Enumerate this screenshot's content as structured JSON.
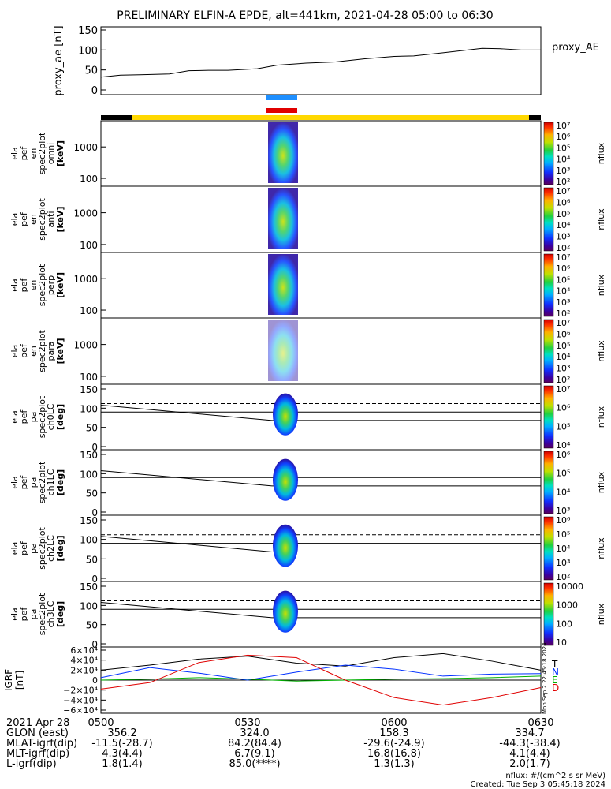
{
  "title": "PRELIMINARY ELFIN-A EPDE, alt=441km, 2021-04-28 05:00 to 06:30",
  "colors": {
    "axis": "#000000",
    "bar_black": "#000000",
    "bar_yellow": "#ffd800",
    "marker_blue": "#1e8fff",
    "marker_red": "#e00000",
    "T": "#000000",
    "N": "#0030ff",
    "E": "#00b000",
    "D": "#e00000"
  },
  "chart_data": [
    {
      "id": "proxy_ae",
      "type": "line",
      "ylabel": "proxy_ae [nT]",
      "legend": "proxy_AE",
      "ylim": [
        0,
        150
      ],
      "yticks": [
        "0",
        "50",
        "100",
        "150"
      ],
      "x_minutes": [
        0,
        4,
        8,
        14,
        18,
        22,
        26,
        32,
        36,
        42,
        48,
        54,
        60,
        64,
        70,
        78,
        82,
        86,
        90
      ],
      "values": [
        32,
        37,
        38,
        40,
        48,
        49,
        49,
        53,
        62,
        67,
        70,
        78,
        84,
        85,
        93,
        104,
        103,
        100,
        100
      ]
    },
    {
      "id": "en_spec_omni",
      "type": "heatmap",
      "ylabel": [
        "ela",
        "pef",
        "en",
        "spec2plot",
        "omni",
        "[keV]"
      ],
      "yscale": "log",
      "yticks": [
        "100",
        "1000"
      ],
      "colorbar": {
        "label": "nflux",
        "ticks": [
          "10²",
          "10³",
          "10⁴",
          "10⁵",
          "10⁶",
          "10⁷"
        ]
      }
    },
    {
      "id": "en_spec_anti",
      "type": "heatmap",
      "ylabel": [
        "ela",
        "pef",
        "en",
        "spec2plot",
        "anti",
        "[keV]"
      ],
      "yscale": "log",
      "yticks": [
        "100",
        "1000"
      ],
      "colorbar": {
        "label": "nflux",
        "ticks": [
          "10²",
          "10³",
          "10⁴",
          "10⁵",
          "10⁶",
          "10⁷"
        ]
      }
    },
    {
      "id": "en_spec_perp",
      "type": "heatmap",
      "ylabel": [
        "ela",
        "pef",
        "en",
        "spec2plot",
        "perp",
        "[keV]"
      ],
      "yscale": "log",
      "yticks": [
        "100",
        "1000"
      ],
      "colorbar": {
        "label": "nflux",
        "ticks": [
          "10²",
          "10³",
          "10⁴",
          "10⁵",
          "10⁶",
          "10⁷"
        ]
      }
    },
    {
      "id": "en_spec_para",
      "type": "heatmap",
      "ylabel": [
        "ela",
        "pef",
        "en",
        "spec2plot",
        "para",
        "[keV]"
      ],
      "yscale": "log",
      "yticks": [
        "100",
        "1000"
      ],
      "colorbar": {
        "label": "nflux",
        "ticks": [
          "10²",
          "10³",
          "10⁴",
          "10⁵",
          "10⁶",
          "10⁷"
        ]
      }
    },
    {
      "id": "pa_ch0",
      "type": "heatmap",
      "ylabel": [
        "ela",
        "pef",
        "pa",
        "spec2plot",
        "ch0LC",
        "[deg]"
      ],
      "ylim": [
        0,
        150
      ],
      "yticks": [
        "0",
        "50",
        "100",
        "150"
      ],
      "colorbar": {
        "label": "nflux",
        "ticks": [
          "10⁴",
          "10⁵",
          "10⁶",
          "10⁷"
        ]
      }
    },
    {
      "id": "pa_ch1",
      "type": "heatmap",
      "ylabel": [
        "ela",
        "pef",
        "pa",
        "spec2plot",
        "ch1LC",
        "[deg]"
      ],
      "ylim": [
        0,
        150
      ],
      "yticks": [
        "0",
        "50",
        "100",
        "150"
      ],
      "colorbar": {
        "label": "nflux",
        "ticks": [
          "10³",
          "10⁴",
          "10⁵",
          "10⁶"
        ]
      }
    },
    {
      "id": "pa_ch2",
      "type": "heatmap",
      "ylabel": [
        "ela",
        "pef",
        "pa",
        "spec2plot",
        "ch2LC",
        "[deg]"
      ],
      "ylim": [
        0,
        150
      ],
      "yticks": [
        "0",
        "50",
        "100",
        "150"
      ],
      "colorbar": {
        "label": "nflux",
        "ticks": [
          "10²",
          "10³",
          "10⁴",
          "10⁵",
          "10⁶"
        ]
      }
    },
    {
      "id": "pa_ch3",
      "type": "heatmap",
      "ylabel": [
        "ela",
        "pef",
        "pa",
        "spec2plot",
        "ch3LC",
        "[deg]"
      ],
      "ylim": [
        0,
        150
      ],
      "yticks": [
        "0",
        "50",
        "100",
        "150"
      ],
      "colorbar": {
        "label": "nflux",
        "ticks": [
          "10",
          "100",
          "1000",
          "10000"
        ]
      }
    },
    {
      "id": "igrf",
      "type": "line",
      "ylabel": [
        "IGRF",
        "[nT]"
      ],
      "ylim": [
        -60000,
        60000
      ],
      "yticks": [
        "−6×10⁴",
        "−4×10⁴",
        "−2×10⁴",
        "0",
        "2×10⁴",
        "4×10⁴",
        "6×10⁴"
      ],
      "legend": [
        "T",
        "N",
        "E",
        "D"
      ],
      "x_minutes": [
        0,
        10,
        20,
        30,
        40,
        50,
        60,
        70,
        80,
        90
      ],
      "series": [
        {
          "name": "T",
          "values": [
            20000,
            30000,
            42000,
            48000,
            34000,
            28000,
            45000,
            53000,
            38000,
            20000
          ]
        },
        {
          "name": "N",
          "values": [
            5000,
            25000,
            14000,
            0,
            16000,
            30000,
            22000,
            8000,
            12000,
            13000
          ]
        },
        {
          "name": "E",
          "values": [
            0,
            2000,
            5000,
            2000,
            -2000,
            0,
            2000,
            3000,
            5000,
            8000
          ]
        },
        {
          "name": "D",
          "values": [
            -18000,
            -5000,
            35000,
            50000,
            45000,
            0,
            -35000,
            -50000,
            -35000,
            -15000
          ]
        }
      ]
    }
  ],
  "x_tick_labels": [
    "0500",
    "0530",
    "0600",
    "0630"
  ],
  "ephemeris": {
    "rows": [
      {
        "label": "2021 Apr 28",
        "values": [
          "",
          "",
          "",
          ""
        ]
      },
      {
        "label": "GLON (east)",
        "values": [
          "356.2",
          "324.0",
          "158.3",
          "334.7"
        ]
      },
      {
        "label": "MLAT-igrf(dip)",
        "values": [
          "-11.5(-28.7)",
          "84.2(84.4)",
          "-29.6(-24.9)",
          "-44.3(-38.4)"
        ]
      },
      {
        "label": "MLT-igrf(dip)",
        "values": [
          "4.3(4.4)",
          "6.7(9.1)",
          "16.8(16.8)",
          "4.1(4.4)"
        ]
      },
      {
        "label": "L-igrf(dip)",
        "values": [
          "1.8(1.4)",
          "85.0(****)",
          "1.3(1.3)",
          "2.0(1.7)"
        ]
      }
    ]
  },
  "footer": {
    "units": "nflux: #/(cm^2 s sr MeV)",
    "created": "Created: Tue Sep  3 05:45:18 2024"
  },
  "side_stamp": "Mon Sep  2 22:45:18 2024"
}
